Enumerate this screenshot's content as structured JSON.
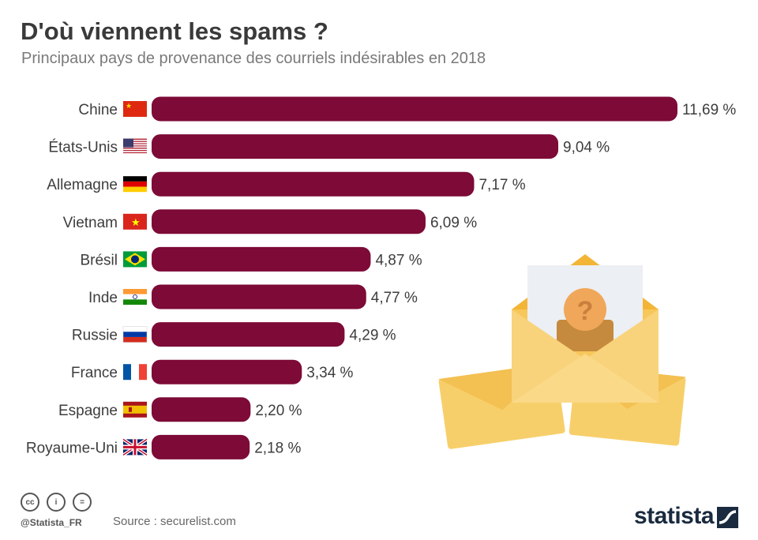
{
  "header": {
    "title": "D'où viennent les spams ?",
    "subtitle": "Principaux pays de provenance des courriels indésirables en 2018"
  },
  "chart_data": {
    "type": "bar",
    "orientation": "horizontal",
    "categories": [
      "Chine",
      "États-Unis",
      "Allemagne",
      "Vietnam",
      "Brésil",
      "Inde",
      "Russie",
      "France",
      "Espagne",
      "Royaume-Uni"
    ],
    "values": [
      11.69,
      9.04,
      7.17,
      6.09,
      4.87,
      4.77,
      4.29,
      3.34,
      2.2,
      2.18
    ],
    "value_labels": [
      "11,69 %",
      "9,04 %",
      "7,17 %",
      "6,09 %",
      "4,87 %",
      "4,77 %",
      "4,29 %",
      "3,34 %",
      "2,20 %",
      "2,18 %"
    ],
    "flag_icons": [
      "china-flag-icon",
      "usa-flag-icon",
      "germany-flag-icon",
      "vietnam-flag-icon",
      "brazil-flag-icon",
      "india-flag-icon",
      "russia-flag-icon",
      "france-flag-icon",
      "spain-flag-icon",
      "uk-flag-icon"
    ],
    "bar_color": "#7d0a37",
    "grid": false,
    "legend": "none"
  },
  "footer": {
    "license_icons": [
      "cc-icon",
      "attribution-icon",
      "no-derivatives-icon"
    ],
    "license_glyphs": [
      "cc",
      "i",
      "="
    ],
    "handle": "@Statista_FR",
    "source": "Source : securelist.com",
    "brand": "statista"
  },
  "illustration": {
    "icon": "spam-envelopes-icon",
    "glyph": "?"
  }
}
